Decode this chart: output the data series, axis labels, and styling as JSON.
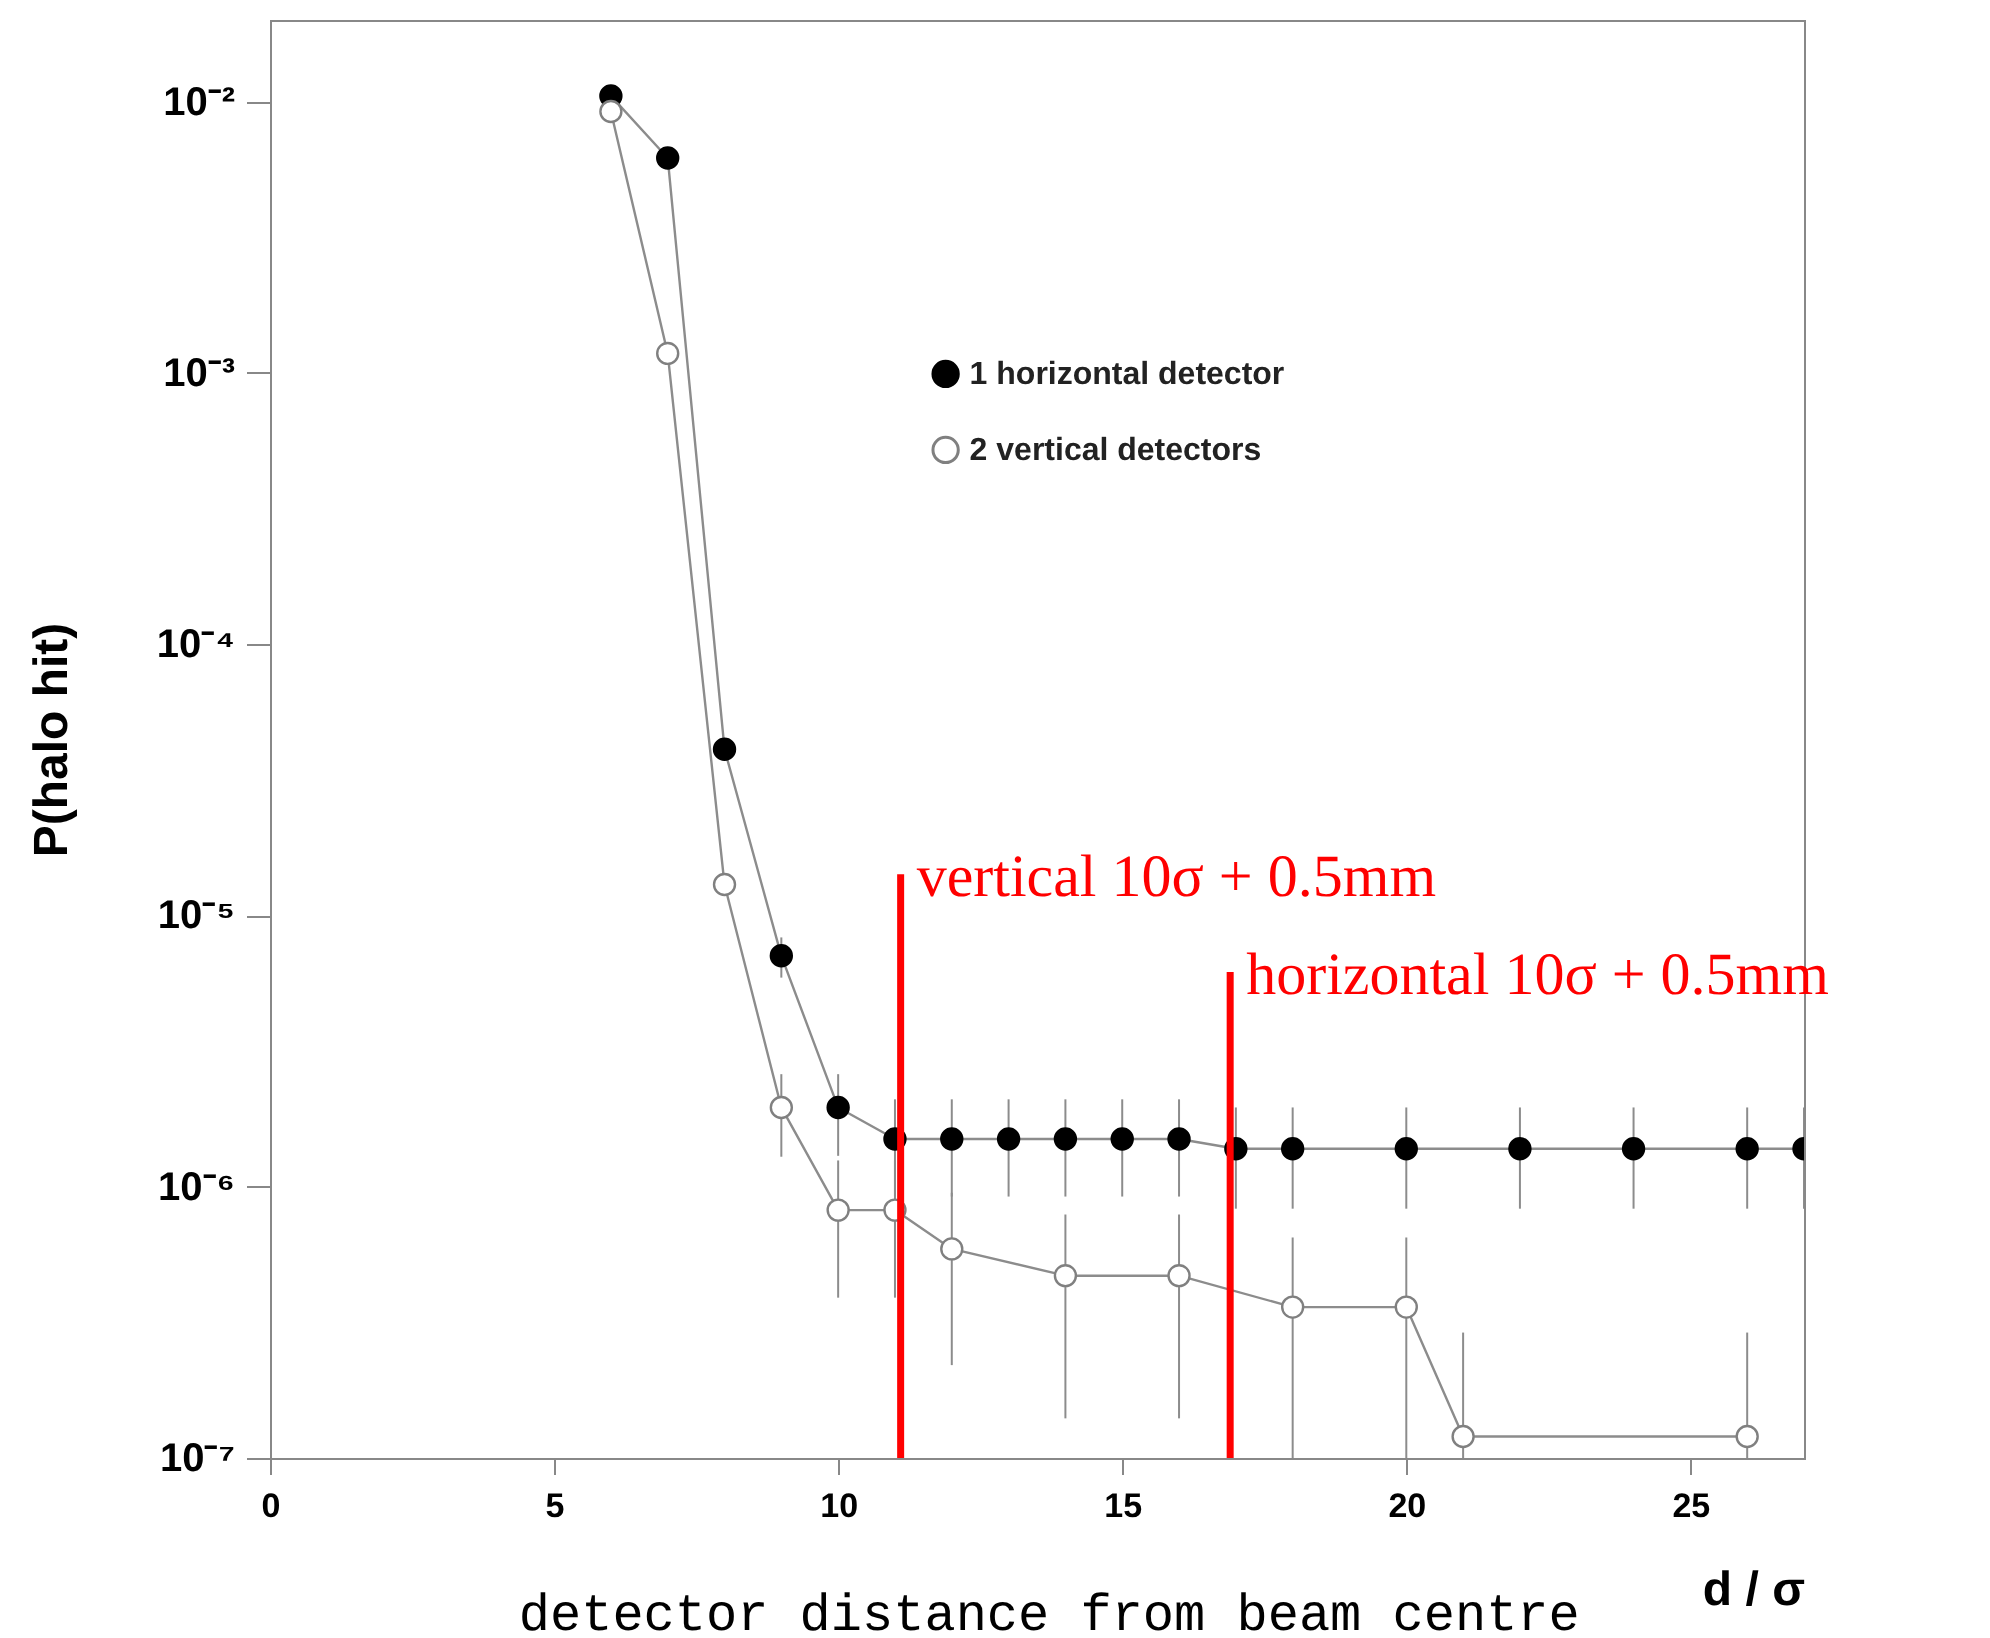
{
  "chart_data": {
    "type": "line",
    "xlabel": "d / σ",
    "ylabel": "P(halo hit)",
    "annotations": [
      "detector distance from beam centre"
    ],
    "xlim": [
      0,
      27
    ],
    "xticks": [
      0,
      5,
      10,
      15,
      20,
      25
    ],
    "ylim": [
      1e-07,
      0.02
    ],
    "log": "y",
    "yticks": [
      {
        "value": 1e-07,
        "label": "10⁻⁷"
      },
      {
        "value": 1e-06,
        "label": "10⁻⁶"
      },
      {
        "value": 1e-05,
        "label": "10⁻⁵"
      },
      {
        "value": 0.0001,
        "label": "10⁻⁴"
      },
      {
        "value": 0.001,
        "label": "10⁻³"
      },
      {
        "value": 0.01,
        "label": "10⁻²"
      }
    ],
    "grid": false,
    "legend": "top",
    "marker": "circle",
    "series": [
      {
        "name": "1 horizontal detector",
        "color": "#000000",
        "x": [
          6,
          7,
          8,
          9,
          10,
          11,
          12,
          13,
          14,
          15,
          16,
          17,
          18,
          20,
          22,
          24,
          26,
          27
        ],
        "values": [
          0.0105,
          0.0062,
          4.1e-05,
          7.1e-06,
          1.96e-06,
          1.5e-06,
          1.5e-06,
          1.5e-06,
          1.5e-06,
          1.5e-06,
          1.5e-06,
          1.38e-06,
          1.38e-06,
          1.38e-06,
          1.38e-06,
          1.38e-06,
          1.38e-06,
          1.38e-06
        ],
        "errors": [
          null,
          null,
          null,
          [
            5.9e-06,
            8.3e-06
          ],
          [
            1.3e-06,
            2.6e-06
          ],
          [
            9.2e-07,
            2.1e-06
          ],
          [
            9.2e-07,
            2.1e-06
          ],
          [
            9.2e-07,
            2.1e-06
          ],
          [
            9.2e-07,
            2.1e-06
          ],
          [
            9.2e-07,
            2.1e-06
          ],
          [
            9.2e-07,
            2.1e-06
          ],
          [
            8.3e-07,
            1.96e-06
          ],
          [
            8.3e-07,
            1.96e-06
          ],
          [
            8.3e-07,
            1.96e-06
          ],
          [
            8.3e-07,
            1.96e-06
          ],
          [
            8.3e-07,
            1.96e-06
          ],
          [
            8.3e-07,
            1.96e-06
          ],
          [
            8.3e-07,
            1.96e-06
          ]
        ]
      },
      {
        "name": "2 vertical detectors",
        "color": "#808080",
        "x": [
          6,
          7,
          8,
          9,
          10,
          11,
          12,
          14,
          16,
          18,
          20,
          21,
          26
        ],
        "values": [
          0.0092,
          0.00118,
          1.3e-05,
          1.96e-06,
          8.2e-07,
          8.2e-07,
          5.9e-07,
          4.7e-07,
          4.7e-07,
          3.6e-07,
          3.6e-07,
          1.2e-07,
          1.2e-07
        ],
        "errors": [
          null,
          null,
          null,
          [
            1.29e-06,
            2.6e-06
          ],
          [
            3.9e-07,
            1.25e-06
          ],
          [
            3.9e-07,
            1.25e-06
          ],
          [
            2.2e-07,
            9.5e-07
          ],
          [
            1.4e-07,
            7.9e-07
          ],
          [
            1.4e-07,
            7.9e-07
          ],
          [
            1e-07,
            6.5e-07
          ],
          [
            1e-07,
            6.5e-07
          ],
          [
            1e-07,
            2.9e-07
          ],
          [
            1e-07,
            2.9e-07
          ]
        ]
      }
    ],
    "ref_lines": [
      {
        "axis": "x",
        "value": 11.1,
        "label": "vertical 10σ + 0.5mm",
        "color": "#ff0000"
      },
      {
        "axis": "x",
        "value": 16.9,
        "label": "horizontal 10σ + 0.5mm",
        "color": "#ff0000"
      }
    ]
  }
}
